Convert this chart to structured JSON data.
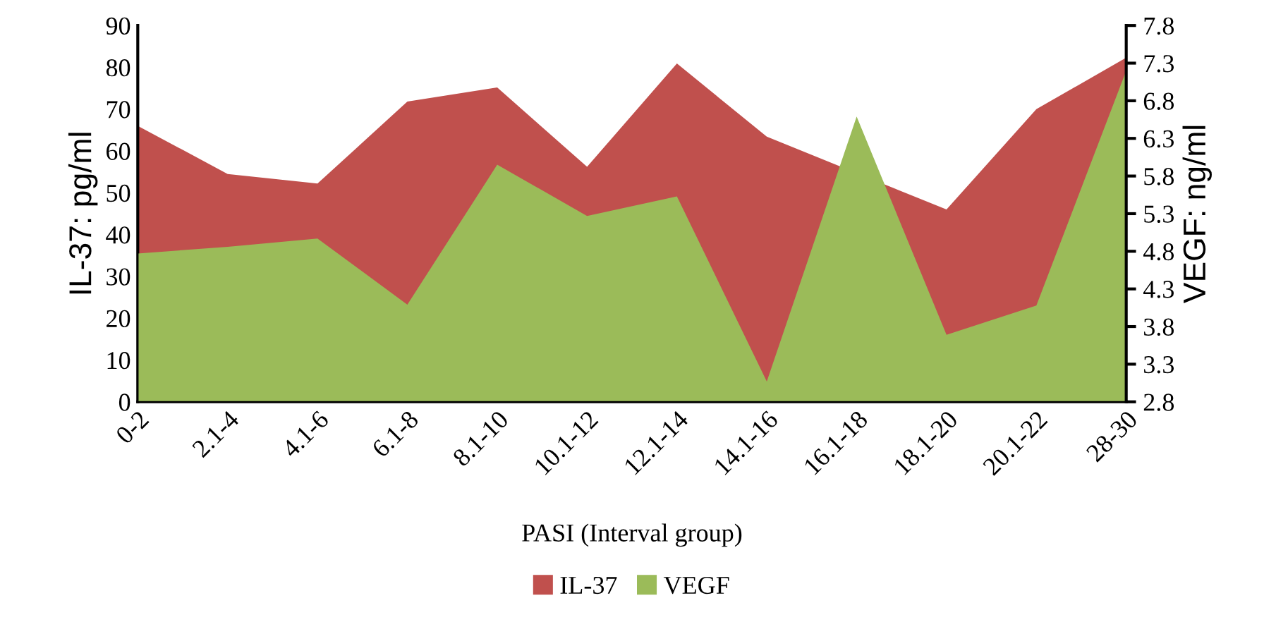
{
  "chart_data": {
    "type": "area",
    "xlabel": "PASI (Interval group)",
    "ylabel": "IL-37: pg/ml",
    "y2label": "VEGF: ng/ml",
    "categories": [
      "0-2",
      "2.1-4",
      "4.1-6",
      "6.1-8",
      "8.1-10",
      "10.1-12",
      "12.1-14",
      "14.1-16",
      "16.1-18",
      "18.1-20",
      "20.1-22",
      "28-30"
    ],
    "series": [
      {
        "name": "IL-37",
        "color": "#c0504d",
        "values": [
          66,
          54.5,
          52.2,
          71.8,
          75.2,
          56.2,
          80.9,
          63.4,
          null,
          46,
          70,
          82.3
        ]
      },
      {
        "name": "VEGF",
        "color": "#9bbb59",
        "axis": "y2",
        "values": [
          4.77,
          4.86,
          4.97,
          4.09,
          5.95,
          5.27,
          5.53,
          3.07,
          6.59,
          3.69,
          4.08,
          7.2
        ]
      }
    ],
    "ylim": [
      0,
      90
    ],
    "yticks": [
      0,
      10,
      20,
      30,
      40,
      50,
      60,
      70,
      80,
      90
    ],
    "y2lim": [
      2.8,
      7.8
    ],
    "y2ticks": [
      2.8,
      3.3,
      3.8,
      4.3,
      4.8,
      5.3,
      5.8,
      6.3,
      6.8,
      7.3,
      7.8
    ],
    "legend": "bottom",
    "grid": false
  }
}
